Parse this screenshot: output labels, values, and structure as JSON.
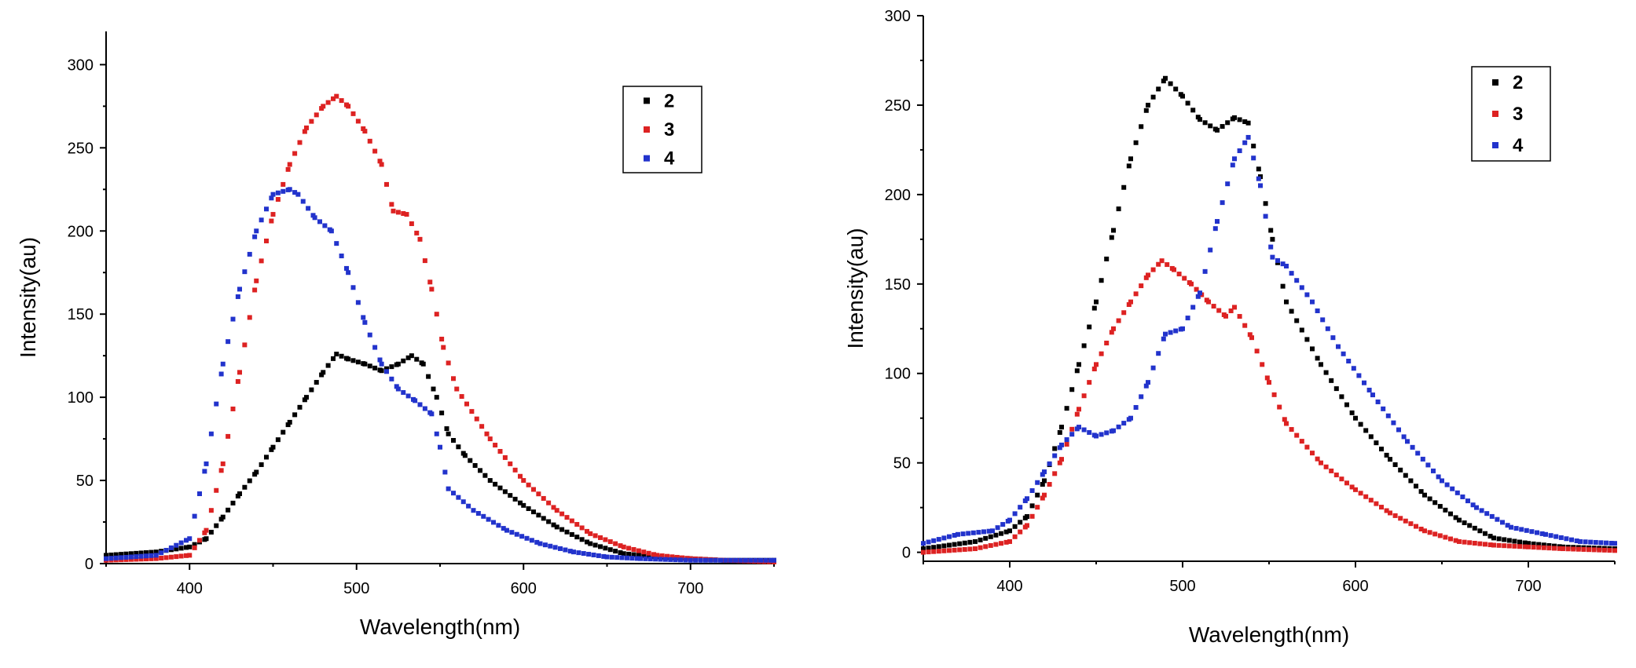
{
  "chart_data": [
    {
      "type": "scatter",
      "xlabel": "Wavelength(nm)",
      "ylabel": "Intensity(au)",
      "xlim": [
        350,
        750
      ],
      "ylim": [
        0,
        320
      ],
      "xticks": [
        400,
        500,
        600,
        700
      ],
      "yticks": [
        0,
        50,
        100,
        150,
        200,
        250,
        300
      ],
      "legend_position": "top-right",
      "series": [
        {
          "name": "2",
          "color": "#000000",
          "points": [
            [
              350,
              5
            ],
            [
              380,
              7
            ],
            [
              400,
              10
            ],
            [
              410,
              15
            ],
            [
              420,
              28
            ],
            [
              430,
              42
            ],
            [
              440,
              55
            ],
            [
              450,
              70
            ],
            [
              460,
              85
            ],
            [
              470,
              100
            ],
            [
              480,
              115
            ],
            [
              488,
              126
            ],
            [
              495,
              123
            ],
            [
              505,
              120
            ],
            [
              515,
              116
            ],
            [
              525,
              120
            ],
            [
              533,
              125
            ],
            [
              540,
              120
            ],
            [
              548,
              100
            ],
            [
              555,
              78
            ],
            [
              565,
              65
            ],
            [
              580,
              50
            ],
            [
              600,
              35
            ],
            [
              620,
              22
            ],
            [
              640,
              12
            ],
            [
              660,
              6
            ],
            [
              680,
              4
            ],
            [
              700,
              3
            ],
            [
              720,
              2
            ],
            [
              750,
              2
            ]
          ]
        },
        {
          "name": "3",
          "color": "#dd2222",
          "points": [
            [
              350,
              2
            ],
            [
              380,
              3
            ],
            [
              400,
              5
            ],
            [
              410,
              20
            ],
            [
              420,
              60
            ],
            [
              430,
              115
            ],
            [
              440,
              170
            ],
            [
              450,
              210
            ],
            [
              460,
              240
            ],
            [
              470,
              262
            ],
            [
              480,
              275
            ],
            [
              488,
              281
            ],
            [
              495,
              275
            ],
            [
              505,
              260
            ],
            [
              515,
              240
            ],
            [
              522,
              212
            ],
            [
              530,
              210
            ],
            [
              538,
              195
            ],
            [
              545,
              165
            ],
            [
              552,
              130
            ],
            [
              560,
              105
            ],
            [
              580,
              75
            ],
            [
              600,
              50
            ],
            [
              620,
              32
            ],
            [
              640,
              18
            ],
            [
              660,
              10
            ],
            [
              680,
              5
            ],
            [
              700,
              3
            ],
            [
              720,
              2
            ],
            [
              750,
              1
            ]
          ]
        },
        {
          "name": "4",
          "color": "#2233cc",
          "points": [
            [
              350,
              3
            ],
            [
              380,
              5
            ],
            [
              400,
              15
            ],
            [
              410,
              60
            ],
            [
              420,
              120
            ],
            [
              430,
              165
            ],
            [
              440,
              200
            ],
            [
              450,
              222
            ],
            [
              460,
              225
            ],
            [
              465,
              222
            ],
            [
              475,
              208
            ],
            [
              485,
              200
            ],
            [
              495,
              175
            ],
            [
              505,
              145
            ],
            [
              515,
              120
            ],
            [
              525,
              105
            ],
            [
              535,
              98
            ],
            [
              545,
              90
            ],
            [
              550,
              70
            ],
            [
              555,
              45
            ],
            [
              570,
              32
            ],
            [
              590,
              20
            ],
            [
              610,
              12
            ],
            [
              630,
              7
            ],
            [
              650,
              4
            ],
            [
              670,
              3
            ],
            [
              700,
              2
            ],
            [
              750,
              2
            ]
          ]
        }
      ]
    },
    {
      "type": "scatter",
      "xlabel": "Wavelength(nm)",
      "ylabel": "Intensity(au)",
      "xlim": [
        350,
        750
      ],
      "ylim": [
        -5,
        300
      ],
      "xticks": [
        400,
        500,
        600,
        700
      ],
      "yticks": [
        0,
        50,
        100,
        150,
        200,
        250,
        300
      ],
      "legend_position": "top-right",
      "series": [
        {
          "name": "2",
          "color": "#000000",
          "points": [
            [
              350,
              2
            ],
            [
              380,
              6
            ],
            [
              400,
              12
            ],
            [
              410,
              20
            ],
            [
              420,
              40
            ],
            [
              430,
              70
            ],
            [
              440,
              105
            ],
            [
              450,
              140
            ],
            [
              460,
              180
            ],
            [
              470,
              220
            ],
            [
              480,
              250
            ],
            [
              490,
              265
            ],
            [
              500,
              255
            ],
            [
              510,
              242
            ],
            [
              520,
              236
            ],
            [
              530,
              243
            ],
            [
              538,
              240
            ],
            [
              545,
              210
            ],
            [
              552,
              175
            ],
            [
              560,
              140
            ],
            [
              580,
              105
            ],
            [
              600,
              75
            ],
            [
              620,
              52
            ],
            [
              640,
              32
            ],
            [
              660,
              18
            ],
            [
              680,
              8
            ],
            [
              700,
              5
            ],
            [
              720,
              3
            ],
            [
              750,
              2
            ]
          ]
        },
        {
          "name": "3",
          "color": "#dd2222",
          "points": [
            [
              350,
              0
            ],
            [
              380,
              2
            ],
            [
              400,
              6
            ],
            [
              410,
              15
            ],
            [
              420,
              32
            ],
            [
              430,
              52
            ],
            [
              440,
              80
            ],
            [
              450,
              105
            ],
            [
              460,
              125
            ],
            [
              470,
              140
            ],
            [
              480,
              155
            ],
            [
              488,
              163
            ],
            [
              495,
              158
            ],
            [
              505,
              150
            ],
            [
              515,
              140
            ],
            [
              525,
              132
            ],
            [
              530,
              137
            ],
            [
              540,
              120
            ],
            [
              550,
              95
            ],
            [
              560,
              72
            ],
            [
              580,
              50
            ],
            [
              600,
              35
            ],
            [
              620,
              22
            ],
            [
              640,
              12
            ],
            [
              660,
              6
            ],
            [
              680,
              4
            ],
            [
              700,
              3
            ],
            [
              720,
              2
            ],
            [
              750,
              1
            ]
          ]
        },
        {
          "name": "4",
          "color": "#2233cc",
          "points": [
            [
              350,
              5
            ],
            [
              370,
              10
            ],
            [
              390,
              12
            ],
            [
              400,
              18
            ],
            [
              410,
              30
            ],
            [
              420,
              45
            ],
            [
              430,
              60
            ],
            [
              440,
              70
            ],
            [
              450,
              65
            ],
            [
              460,
              68
            ],
            [
              470,
              75
            ],
            [
              480,
              95
            ],
            [
              490,
              122
            ],
            [
              500,
              125
            ],
            [
              510,
              145
            ],
            [
              520,
              185
            ],
            [
              530,
              220
            ],
            [
              538,
              232
            ],
            [
              545,
              205
            ],
            [
              552,
              165
            ],
            [
              560,
              160
            ],
            [
              575,
              140
            ],
            [
              590,
              115
            ],
            [
              610,
              88
            ],
            [
              630,
              62
            ],
            [
              650,
              40
            ],
            [
              670,
              25
            ],
            [
              690,
              14
            ],
            [
              710,
              10
            ],
            [
              730,
              6
            ],
            [
              750,
              5
            ]
          ]
        }
      ]
    }
  ]
}
